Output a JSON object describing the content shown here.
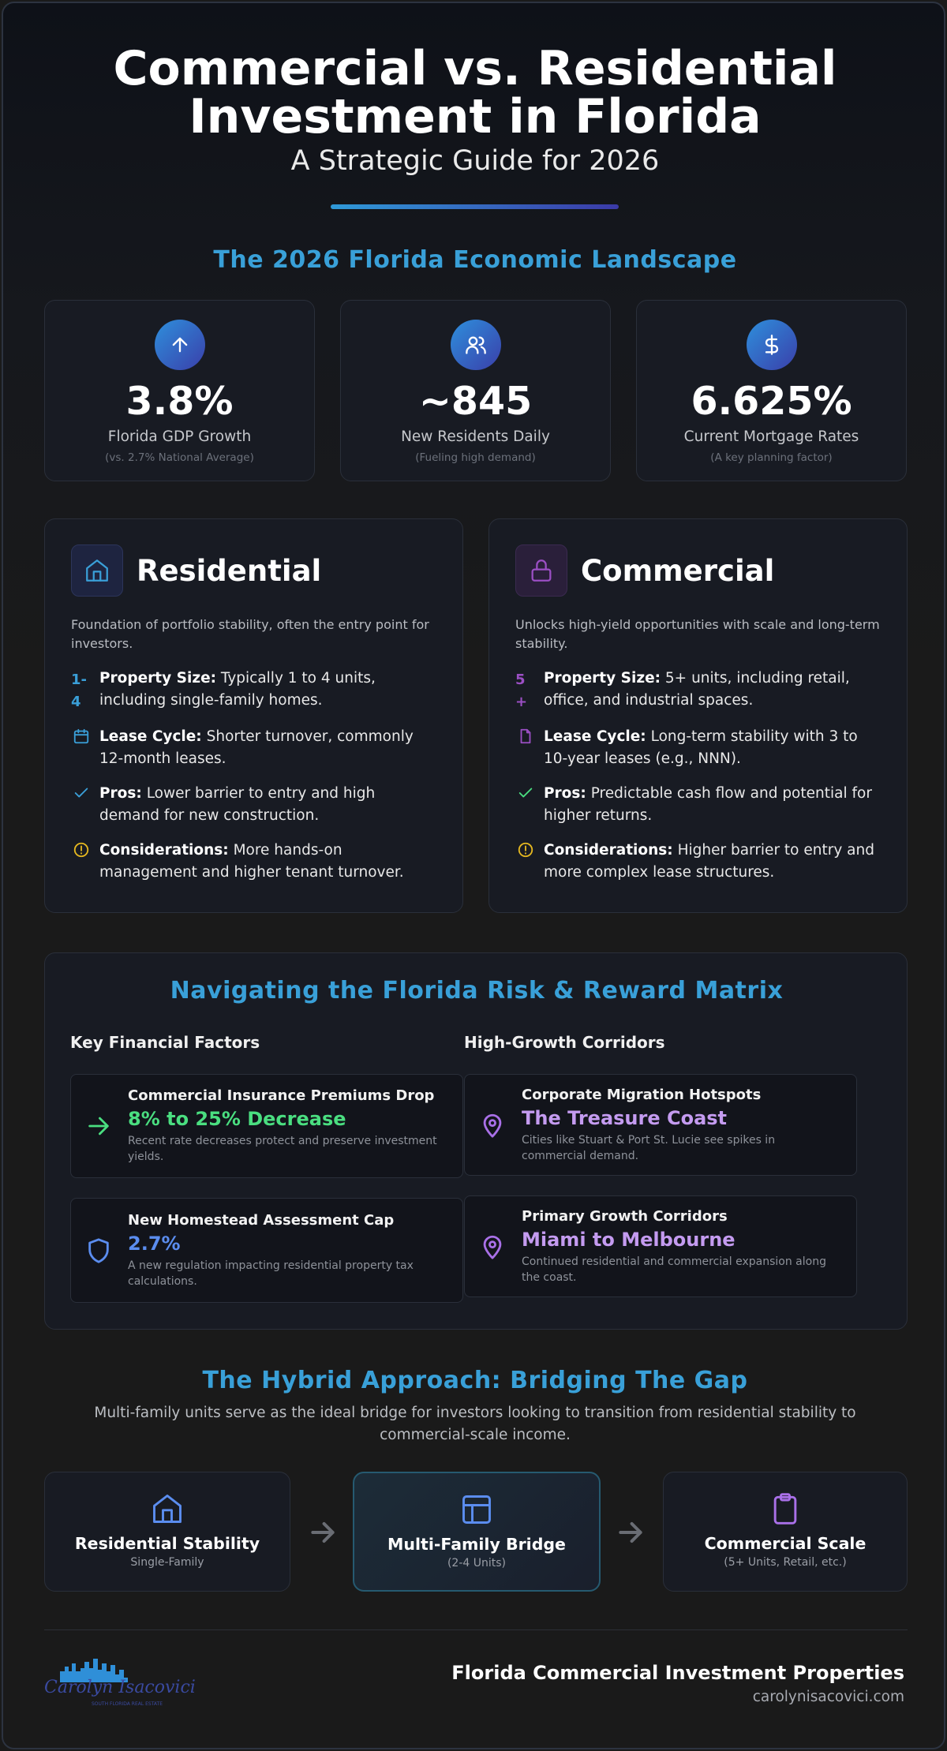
{
  "header": {
    "title_line1": "Commercial vs. Residential",
    "title_line2": "Investment in Florida",
    "subtitle": "A Strategic Guide for 2026"
  },
  "landscape": {
    "heading": "The 2026 Florida Economic Landscape",
    "stats": [
      {
        "value": "3.8%",
        "label": "Florida GDP Growth",
        "note": "(vs. 2.7% National Average)"
      },
      {
        "value": "~845",
        "label": "New Residents Daily",
        "note": "(Fueling high demand)"
      },
      {
        "value": "6.625%",
        "label": "Current Mortgage Rates",
        "note": "(A key planning factor)"
      }
    ]
  },
  "types": [
    {
      "title": "Residential",
      "description": "Foundation of portfolio stability, often the entry point for investors.",
      "items": [
        {
          "badge": "1-4",
          "label": "Property Size:",
          "text": "Typically 1 to 4 units, including single-family homes."
        },
        {
          "label": "Lease Cycle:",
          "text": "Shorter turnover, commonly 12-month leases."
        },
        {
          "label": "Pros:",
          "text": "Lower barrier to entry and high demand for new construction."
        },
        {
          "label": "Considerations:",
          "text": "More hands-on management and higher tenant turnover."
        }
      ]
    },
    {
      "title": "Commercial",
      "description": "Unlocks high-yield opportunities with scale and long-term stability.",
      "items": [
        {
          "badge": "5+",
          "label": "Property Size:",
          "text": "5+ units, including retail, office, and industrial spaces."
        },
        {
          "label": "Lease Cycle:",
          "text": "Long-term stability with 3 to 10-year leases (e.g., NNN)."
        },
        {
          "label": "Pros:",
          "text": "Predictable cash flow and potential for higher returns."
        },
        {
          "label": "Considerations:",
          "text": "Higher barrier to entry and more complex lease structures."
        }
      ]
    }
  ],
  "matrix": {
    "heading": "Navigating the Florida Risk & Reward Matrix",
    "columns": [
      {
        "heading": "Key Financial Factors",
        "cards": [
          {
            "title": "Commercial Insurance Premiums Drop",
            "value": "8% to 25% Decrease",
            "description": "Recent rate decreases protect and preserve investment yields."
          },
          {
            "title": "New Homestead Assessment Cap",
            "value": "2.7%",
            "description": "A new regulation impacting residential property tax calculations."
          }
        ]
      },
      {
        "heading": "High-Growth Corridors",
        "cards": [
          {
            "title": "Corporate Migration Hotspots",
            "value": "The Treasure Coast",
            "description": "Cities like Stuart & Port St. Lucie see spikes in commercial demand."
          },
          {
            "title": "Primary Growth Corridors",
            "value": "Miami to Melbourne",
            "description": "Continued residential and commercial expansion along the coast."
          }
        ]
      }
    ]
  },
  "hybrid": {
    "heading": "The Hybrid Approach: Bridging The Gap",
    "description": "Multi-family units serve as the ideal bridge for investors looking to transition from residential stability to commercial-scale income.",
    "steps": [
      {
        "title": "Residential Stability",
        "subtitle": "Single-Family"
      },
      {
        "title": "Multi-Family Bridge",
        "subtitle": "(2-4 Units)"
      },
      {
        "title": "Commercial Scale",
        "subtitle": "(5+ Units, Retail, etc.)"
      }
    ]
  },
  "footer": {
    "logo_name": "Carolyn Isacovici",
    "logo_tagline": "SOUTH FLORIDA REAL ESTATE",
    "company": "Florida Commercial Investment Properties",
    "website": "carolynisacovici.com"
  }
}
